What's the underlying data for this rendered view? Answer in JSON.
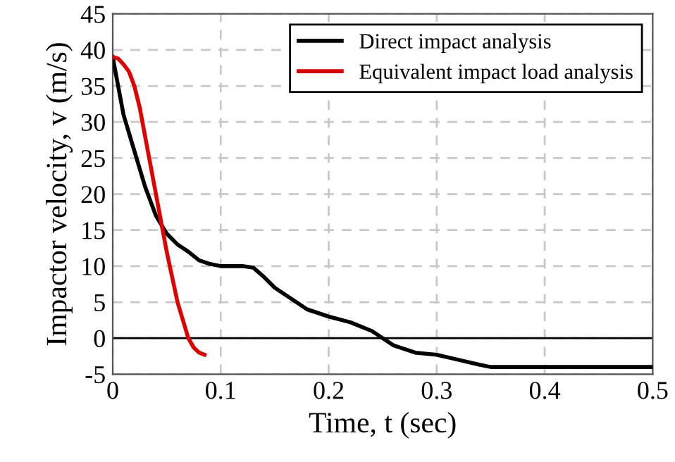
{
  "chart_data": {
    "type": "line",
    "xlabel": "Time, t (sec)",
    "ylabel": "Impactor velocity, v (m/s)",
    "xlim": [
      0,
      0.5
    ],
    "xticks": [
      0,
      0.1,
      0.2,
      0.3,
      0.4,
      0.5
    ],
    "ylim": [
      -5,
      45
    ],
    "yticks": [
      -5,
      0,
      5,
      10,
      15,
      20,
      25,
      30,
      35,
      40,
      45
    ],
    "grid": true,
    "legend": "top right",
    "marker": "none",
    "line_style": "solid",
    "ref_lines": [
      {
        "axis": "y",
        "value": 0,
        "color": "#000000"
      }
    ],
    "series": [
      {
        "name": "Direct impact analysis",
        "color": "#000000",
        "x": [
          0,
          0.01,
          0.02,
          0.03,
          0.04,
          0.05,
          0.06,
          0.07,
          0.08,
          0.09,
          0.1,
          0.12,
          0.13,
          0.14,
          0.15,
          0.16,
          0.17,
          0.18,
          0.2,
          0.22,
          0.24,
          0.25,
          0.26,
          0.28,
          0.3,
          0.32,
          0.34,
          0.35,
          0.5
        ],
        "values": [
          39,
          31,
          26,
          21,
          17,
          14.5,
          13,
          12,
          10.8,
          10.3,
          10,
          10,
          9.8,
          8.5,
          7,
          6,
          5,
          4,
          3,
          2.2,
          1,
          0,
          -1,
          -2,
          -2.3,
          -3,
          -3.7,
          -4,
          -4
        ]
      },
      {
        "name": "Equivalent impact load analysis",
        "color": "#e00000",
        "x": [
          0,
          0.005,
          0.01,
          0.015,
          0.02,
          0.025,
          0.03,
          0.04,
          0.05,
          0.06,
          0.07,
          0.075,
          0.08,
          0.085
        ],
        "values": [
          39,
          38.8,
          38,
          37,
          35,
          32,
          28,
          20,
          12,
          5,
          0,
          -1.3,
          -2,
          -2.3
        ]
      }
    ]
  }
}
